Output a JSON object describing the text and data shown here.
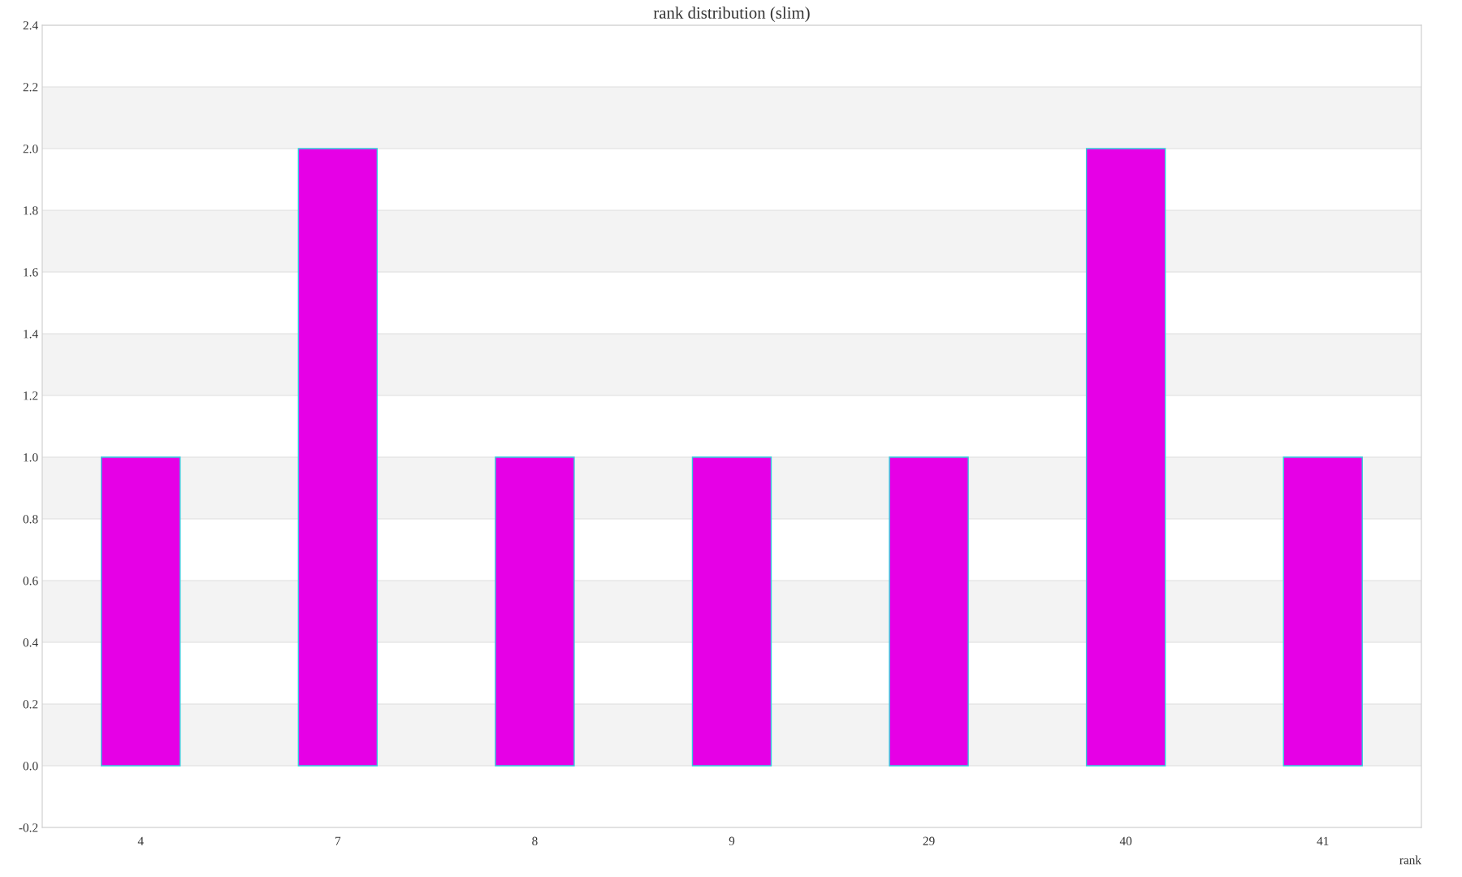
{
  "chart_data": {
    "type": "bar",
    "title": "rank distribution (slim)",
    "xlabel": "rank",
    "categories": [
      "4",
      "7",
      "8",
      "9",
      "29",
      "40",
      "41"
    ],
    "values": [
      1,
      2,
      1,
      1,
      1,
      2,
      1
    ],
    "color": "#e600e6",
    "ylim": [
      -0.2,
      2.4
    ],
    "yticks": [
      -0.2,
      {
        "value": 0,
        "label": "0.0"
      },
      0.2,
      0.4,
      0.6,
      0.8,
      {
        "value": 1,
        "label": "1.0"
      },
      1.2,
      1.4,
      1.6,
      1.8,
      {
        "value": 2,
        "label": "2.0"
      },
      2.2,
      2.4
    ],
    "grid": "y",
    "legend": false
  }
}
